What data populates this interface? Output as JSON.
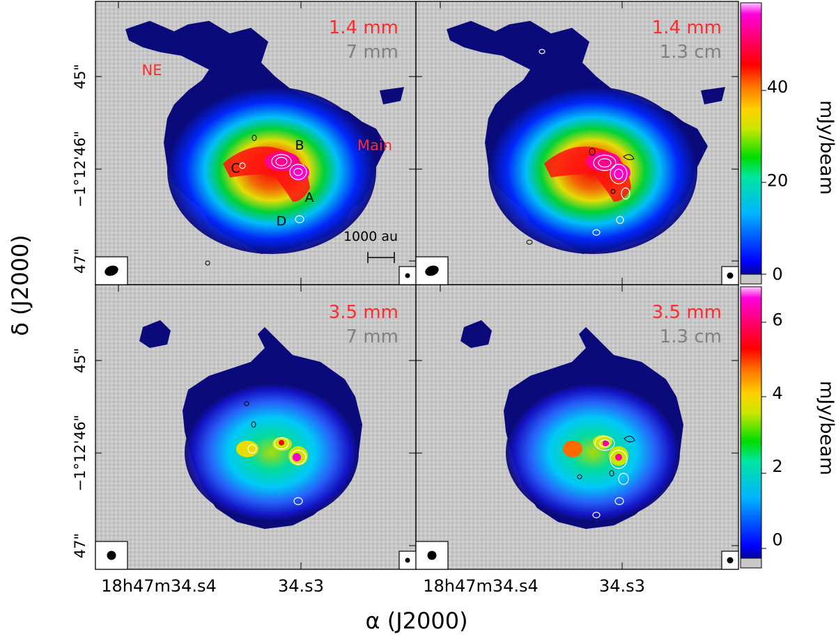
{
  "axes": {
    "xlabel": "α (J2000)",
    "ylabel": "δ (J2000)",
    "x_ticks": [
      "18h47m34.s4",
      "34.s3"
    ],
    "y_ticks": [
      "45\"",
      "−1°12'46\"",
      "47\""
    ]
  },
  "panels": [
    {
      "id": "top-left",
      "band_main": "1.4 mm",
      "band_contour": "7 mm",
      "region_labels": [
        "NE",
        "Main"
      ],
      "source_labels": [
        "A",
        "B",
        "C",
        "D"
      ],
      "scalebar_label": "1000 au"
    },
    {
      "id": "top-right",
      "band_main": "1.4 mm",
      "band_contour": "1.3 cm"
    },
    {
      "id": "bottom-left",
      "band_main": "3.5 mm",
      "band_contour": "7 mm"
    },
    {
      "id": "bottom-right",
      "band_main": "3.5 mm",
      "band_contour": "1.3 cm"
    }
  ],
  "colorbars": [
    {
      "id": "top",
      "unit": "mJy/beam",
      "ticks": [
        0,
        20,
        40
      ],
      "range": [
        0,
        58
      ]
    },
    {
      "id": "bottom",
      "unit": "mJy/beam",
      "ticks": [
        0,
        2,
        4,
        6
      ],
      "range": [
        -0.5,
        6.9
      ]
    }
  ],
  "colors": {
    "title_main": "#ff2a2a",
    "title_contour": "#808080",
    "background_map": "#c8c8c8",
    "colormap": [
      "#0a0a60",
      "#0000ff",
      "#00b4ff",
      "#00e6b4",
      "#00dc00",
      "#c8e600",
      "#ffd200",
      "#ff7800",
      "#ff0000",
      "#ff0064",
      "#ff00c8",
      "#ffb4ff"
    ]
  }
}
